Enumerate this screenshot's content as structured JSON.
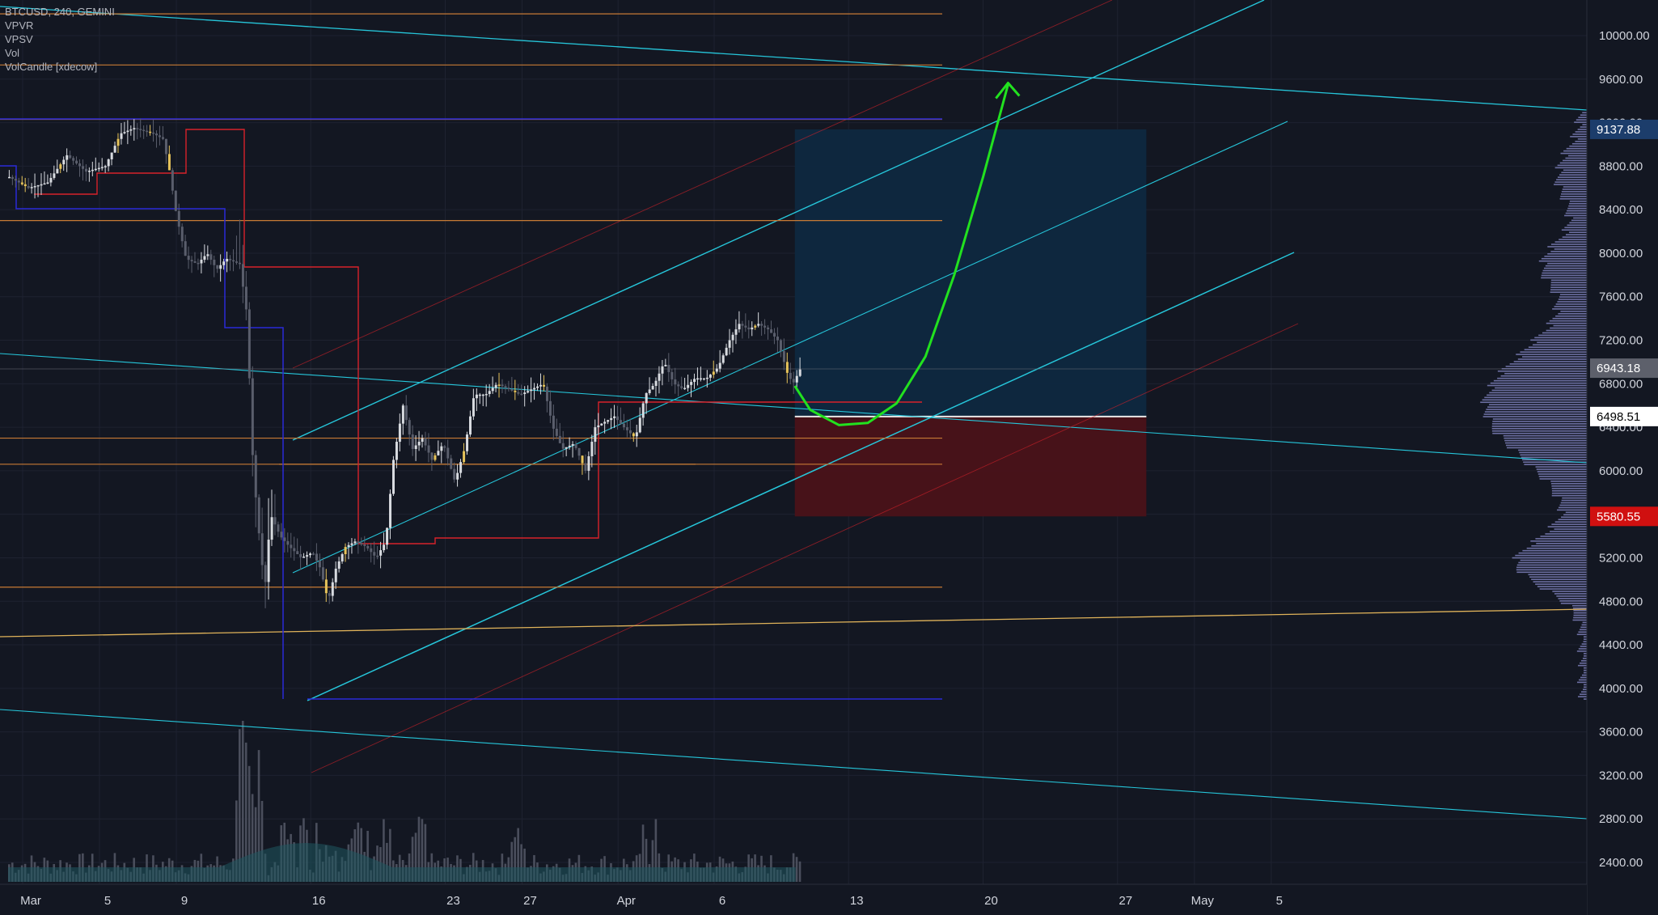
{
  "legend": {
    "symbol": "BTCUSD, 240, GEMINI",
    "indicators": [
      "VPVR",
      "VPSV",
      "Vol",
      "VolCandle [xdecow]"
    ]
  },
  "colors": {
    "background": "#131722",
    "grid": "#1e2230",
    "axis_text": "#d1d4dc",
    "channel": "#26c6da",
    "horizontal_orange": "#c77a35",
    "trend_yellow": "#e0b35a",
    "range_blue": "#2a2ad8",
    "range_red": "#d8222a",
    "target_zone": "#0e2840",
    "stop_zone": "#4a1219",
    "arrow": "#22e11f",
    "candle_up": "#d8dbe0",
    "candle_down": "#5a5e6c",
    "candle_highlight": "#e6c35a",
    "volume_bar": "#4a4e5c",
    "volume_profile": "#7d7fb8"
  },
  "chart_data": {
    "type": "candlestick",
    "symbol": "BTCUSD",
    "interval": "240",
    "exchange": "GEMINI",
    "y_axis": {
      "ticks": [
        "10000.00",
        "9600.00",
        "9200.00",
        "8800.00",
        "8400.00",
        "8000.00",
        "7600.00",
        "7200.00",
        "6800.00",
        "6400.00",
        "6000.00",
        "5600.00",
        "5200.00",
        "4800.00",
        "4400.00",
        "4000.00",
        "3600.00",
        "3200.00",
        "2800.00",
        "2400.00"
      ],
      "range": [
        2250,
        10300
      ]
    },
    "x_axis": {
      "ticks": [
        {
          "label": "Mar",
          "day": 1
        },
        {
          "label": "5",
          "day": 5
        },
        {
          "label": "9",
          "day": 9
        },
        {
          "label": "16",
          "day": 16
        },
        {
          "label": "23",
          "day": 23
        },
        {
          "label": "27",
          "day": 27
        },
        {
          "label": "Apr",
          "day": 32
        },
        {
          "label": "6",
          "day": 37
        },
        {
          "label": "13",
          "day": 44
        },
        {
          "label": "20",
          "day": 51
        },
        {
          "label": "27",
          "day": 58
        },
        {
          "label": "May",
          "day": 62
        },
        {
          "label": "5",
          "day": 66
        }
      ],
      "unit": "days since Mar 1"
    },
    "price_labels": [
      {
        "value": "9137.88",
        "price": 9137.88,
        "style": "target"
      },
      {
        "value": "6943.18",
        "price": 6943.18,
        "style": "last"
      },
      {
        "value": "6498.51",
        "price": 6498.51,
        "style": "entry"
      },
      {
        "value": "5580.55",
        "price": 5580.55,
        "style": "stop"
      }
    ],
    "position": {
      "entry": 6498.51,
      "target": 9137.88,
      "stop": 5580.55,
      "start_day": 41.2,
      "end_day": 59.5
    },
    "price_path": [
      [
        0.0,
        8700
      ],
      [
        1.0,
        8600
      ],
      [
        2.0,
        8650
      ],
      [
        3.0,
        8900
      ],
      [
        4.0,
        8750
      ],
      [
        5.0,
        8800
      ],
      [
        5.8,
        9100
      ],
      [
        6.5,
        9150
      ],
      [
        7.5,
        9100
      ],
      [
        8.0,
        9050
      ],
      [
        8.3,
        8800
      ],
      [
        8.7,
        8350
      ],
      [
        9.2,
        7950
      ],
      [
        9.8,
        7900
      ],
      [
        10.3,
        8000
      ],
      [
        10.8,
        7850
      ],
      [
        11.3,
        7950
      ],
      [
        12.0,
        7900
      ],
      [
        12.4,
        7400
      ],
      [
        12.6,
        6300
      ],
      [
        12.9,
        5600
      ],
      [
        13.3,
        4900
      ],
      [
        13.6,
        5600
      ],
      [
        14.1,
        5400
      ],
      [
        14.6,
        5300
      ],
      [
        15.2,
        5200
      ],
      [
        15.8,
        5250
      ],
      [
        16.2,
        5100
      ],
      [
        16.6,
        4800
      ],
      [
        17.0,
        5100
      ],
      [
        17.5,
        5300
      ],
      [
        18.0,
        5350
      ],
      [
        18.6,
        5300
      ],
      [
        19.1,
        5200
      ],
      [
        19.6,
        5350
      ],
      [
        20.0,
        6100
      ],
      [
        20.5,
        6600
      ],
      [
        21.0,
        6200
      ],
      [
        21.5,
        6300
      ],
      [
        22.0,
        6100
      ],
      [
        22.6,
        6250
      ],
      [
        23.2,
        5900
      ],
      [
        23.7,
        6200
      ],
      [
        24.2,
        6700
      ],
      [
        24.8,
        6700
      ],
      [
        25.4,
        6800
      ],
      [
        26.0,
        6750
      ],
      [
        26.6,
        6700
      ],
      [
        27.2,
        6750
      ],
      [
        27.8,
        6800
      ],
      [
        28.3,
        6400
      ],
      [
        28.8,
        6200
      ],
      [
        29.4,
        6250
      ],
      [
        30.0,
        6000
      ],
      [
        30.5,
        6400
      ],
      [
        31.0,
        6450
      ],
      [
        31.5,
        6500
      ],
      [
        32.0,
        6400
      ],
      [
        32.6,
        6300
      ],
      [
        33.1,
        6700
      ],
      [
        33.6,
        6800
      ],
      [
        34.1,
        7000
      ],
      [
        34.6,
        6800
      ],
      [
        35.1,
        6750
      ],
      [
        35.7,
        6850
      ],
      [
        36.3,
        6850
      ],
      [
        36.9,
        6950
      ],
      [
        37.5,
        7200
      ],
      [
        38.0,
        7350
      ],
      [
        38.5,
        7300
      ],
      [
        39.0,
        7350
      ],
      [
        39.5,
        7300
      ],
      [
        40.0,
        7200
      ],
      [
        40.5,
        6900
      ],
      [
        40.8,
        6800
      ],
      [
        41.2,
        6943
      ]
    ],
    "projection_curve": [
      [
        41.2,
        6780
      ],
      [
        42.0,
        6560
      ],
      [
        43.5,
        6420
      ],
      [
        45.0,
        6440
      ],
      [
        46.5,
        6620
      ],
      [
        48.0,
        7050
      ],
      [
        49.5,
        7800
      ],
      [
        51.0,
        8700
      ],
      [
        52.3,
        9550
      ]
    ]
  }
}
